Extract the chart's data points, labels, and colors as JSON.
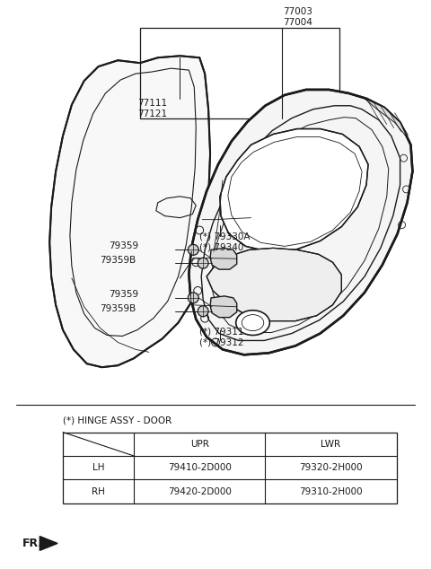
{
  "bg_color": "#ffffff",
  "line_color": "#1a1a1a",
  "text_color": "#1a1a1a",
  "font_size": 6.5,
  "labels": {
    "77003_77004": "77003\n77004",
    "77111_77121": "77111\n77121",
    "79330A_79340": "(*) 79330A\n(*) 79340",
    "79359_upper": "79359",
    "79359B_upper": "79359B",
    "79359_lower": "79359",
    "79359B_lower": "79359B",
    "79311_79312": "(*) 79311\n(*) 79312"
  },
  "table_title": "(*) HINGE ASSY - DOOR",
  "table_cols": [
    "",
    "UPR",
    "LWR"
  ],
  "table_rows": [
    [
      "LH",
      "79410-2D000",
      "79320-2H000"
    ],
    [
      "RH",
      "79420-2D000",
      "79310-2H000"
    ]
  ],
  "fr_label": "FR."
}
